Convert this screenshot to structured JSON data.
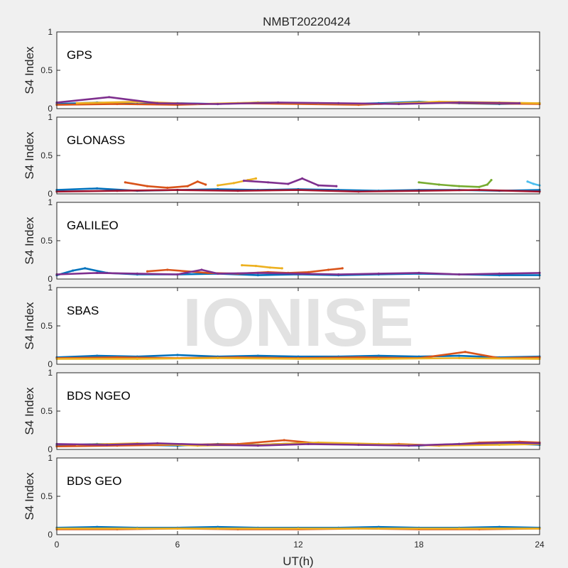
{
  "chart_data": {
    "type": "scatter",
    "title": "NMBT20220424",
    "xlabel": "UT(h)",
    "ylabel": "S4 Index",
    "xlim": [
      0,
      24
    ],
    "ylim": [
      0,
      1
    ],
    "xticks": [
      "0",
      "6",
      "12",
      "18",
      "24"
    ],
    "yticks": [
      "0",
      "0.5",
      "1"
    ],
    "watermark": "IONISE",
    "series_colors": [
      "#0072BD",
      "#D95319",
      "#EDB120",
      "#7E2F8E",
      "#77AC30",
      "#4DBEEE",
      "#A2142F"
    ],
    "panels": [
      {
        "label": "GPS",
        "series": [
          {
            "x": [
              0,
              2,
              4,
              6,
              8,
              10,
              12,
              14,
              16,
              18,
              20,
              22,
              24
            ],
            "y": [
              0.06,
              0.08,
              0.06,
              0.07,
              0.06,
              0.08,
              0.07,
              0.06,
              0.07,
              0.09,
              0.07,
              0.06,
              0.07
            ]
          },
          {
            "x": [
              0,
              3,
              6,
              9,
              12,
              15,
              18,
              21,
              24
            ],
            "y": [
              0.05,
              0.06,
              0.05,
              0.07,
              0.06,
              0.05,
              0.08,
              0.07,
              0.06
            ]
          },
          {
            "x": [
              1,
              4,
              7,
              10,
              13,
              16,
              19,
              22,
              24
            ],
            "y": [
              0.07,
              0.09,
              0.06,
              0.08,
              0.07,
              0.06,
              0.09,
              0.08,
              0.07
            ]
          },
          {
            "x": [
              0,
              2.6,
              5,
              8,
              11,
              14,
              17,
              20,
              23
            ],
            "y": [
              0.08,
              0.15,
              0.07,
              0.06,
              0.08,
              0.07,
              0.06,
              0.08,
              0.07
            ]
          }
        ]
      },
      {
        "label": "GLONASS",
        "series": [
          {
            "x": [
              0,
              2,
              4,
              6,
              8,
              10,
              12,
              14,
              16,
              18,
              20,
              22,
              24
            ],
            "y": [
              0.05,
              0.07,
              0.04,
              0.05,
              0.06,
              0.05,
              0.06,
              0.05,
              0.04,
              0.05,
              0.05,
              0.04,
              0.05
            ]
          },
          {
            "x": [
              3.4,
              4.5,
              5.5,
              6.5,
              7.0,
              7.4
            ],
            "y": [
              0.15,
              0.1,
              0.08,
              0.1,
              0.16,
              0.12
            ]
          },
          {
            "x": [
              8,
              8.8,
              9.5,
              9.9
            ],
            "y": [
              0.11,
              0.14,
              0.18,
              0.2
            ]
          },
          {
            "x": [
              9.3,
              10.5,
              11.5,
              12.2,
              13,
              13.9
            ],
            "y": [
              0.17,
              0.15,
              0.13,
              0.2,
              0.11,
              0.1
            ]
          },
          {
            "x": [
              18,
              19,
              20,
              21,
              21.4,
              21.6
            ],
            "y": [
              0.15,
              0.12,
              0.1,
              0.09,
              0.12,
              0.18
            ]
          },
          {
            "x": [
              23.4,
              23.7,
              24
            ],
            "y": [
              0.16,
              0.13,
              0.11
            ]
          },
          {
            "x": [
              0,
              3,
              6,
              9,
              12,
              15,
              18,
              21,
              24
            ],
            "y": [
              0.03,
              0.04,
              0.05,
              0.04,
              0.05,
              0.03,
              0.04,
              0.05,
              0.03
            ]
          }
        ]
      },
      {
        "label": "GALILEO",
        "series": [
          {
            "x": [
              0,
              0.8,
              1.4,
              2.5,
              4,
              6,
              8,
              10,
              12,
              14,
              16,
              18,
              20,
              22,
              24
            ],
            "y": [
              0.05,
              0.11,
              0.14,
              0.08,
              0.06,
              0.06,
              0.07,
              0.05,
              0.06,
              0.05,
              0.06,
              0.07,
              0.06,
              0.05,
              0.05
            ]
          },
          {
            "x": [
              4.5,
              5.5,
              7.5,
              9,
              10.5,
              11.5,
              12.5,
              13.5,
              14.2
            ],
            "y": [
              0.1,
              0.12,
              0.08,
              0.07,
              0.09,
              0.08,
              0.09,
              0.12,
              0.14
            ]
          },
          {
            "x": [
              9.2,
              9.9,
              10.6,
              11.2
            ],
            "y": [
              0.18,
              0.17,
              0.15,
              0.14
            ]
          },
          {
            "x": [
              0,
              2,
              4,
              6,
              7.2,
              8,
              10,
              12,
              14,
              16,
              18,
              20,
              22,
              24
            ],
            "y": [
              0.06,
              0.08,
              0.07,
              0.06,
              0.12,
              0.07,
              0.08,
              0.07,
              0.06,
              0.07,
              0.08,
              0.06,
              0.07,
              0.08
            ]
          }
        ]
      },
      {
        "label": "SBAS",
        "series": [
          {
            "x": [
              0,
              2,
              4,
              6,
              8,
              10,
              12,
              14,
              16,
              18,
              20,
              22,
              24
            ],
            "y": [
              0.09,
              0.11,
              0.1,
              0.12,
              0.1,
              0.11,
              0.1,
              0.1,
              0.11,
              0.1,
              0.11,
              0.09,
              0.1
            ]
          },
          {
            "x": [
              0,
              3,
              6,
              9,
              12,
              15,
              18,
              20.3,
              22,
              24
            ],
            "y": [
              0.08,
              0.09,
              0.08,
              0.09,
              0.08,
              0.09,
              0.08,
              0.16,
              0.08,
              0.09
            ]
          },
          {
            "x": [
              0,
              4,
              8,
              12,
              16,
              20,
              24
            ],
            "y": [
              0.07,
              0.07,
              0.08,
              0.07,
              0.07,
              0.08,
              0.07
            ]
          }
        ]
      },
      {
        "label": "BDS NGEO",
        "series": [
          {
            "x": [
              0,
              2,
              4,
              6,
              8,
              10,
              12,
              14,
              16,
              18,
              20,
              22,
              24
            ],
            "y": [
              0.05,
              0.07,
              0.06,
              0.05,
              0.07,
              0.06,
              0.08,
              0.07,
              0.06,
              0.05,
              0.07,
              0.08,
              0.06
            ]
          },
          {
            "x": [
              0,
              3,
              6,
              9,
              11.3,
              13,
              15,
              17,
              19,
              21,
              23,
              24
            ],
            "y": [
              0.04,
              0.05,
              0.06,
              0.07,
              0.12,
              0.08,
              0.06,
              0.07,
              0.05,
              0.09,
              0.1,
              0.09
            ]
          },
          {
            "x": [
              1,
              4,
              7,
              10,
              13,
              16,
              19,
              22,
              24
            ],
            "y": [
              0.06,
              0.08,
              0.05,
              0.06,
              0.09,
              0.07,
              0.05,
              0.06,
              0.07
            ]
          },
          {
            "x": [
              0,
              2.5,
              5,
              7.5,
              10,
              12.5,
              15,
              17.5,
              20,
              22.5,
              24
            ],
            "y": [
              0.07,
              0.06,
              0.08,
              0.06,
              0.05,
              0.07,
              0.06,
              0.05,
              0.07,
              0.09,
              0.08
            ]
          }
        ]
      },
      {
        "label": "BDS GEO",
        "series": [
          {
            "x": [
              0,
              2,
              4,
              6,
              8,
              10,
              12,
              14,
              16,
              18,
              20,
              22,
              24
            ],
            "y": [
              0.09,
              0.1,
              0.09,
              0.09,
              0.1,
              0.09,
              0.09,
              0.09,
              0.1,
              0.09,
              0.09,
              0.1,
              0.09
            ]
          },
          {
            "x": [
              0,
              3,
              6,
              9,
              12,
              15,
              18,
              21,
              24
            ],
            "y": [
              0.07,
              0.07,
              0.08,
              0.07,
              0.07,
              0.08,
              0.07,
              0.07,
              0.08
            ]
          },
          {
            "x": [
              0,
              4,
              8,
              12,
              16,
              20,
              24
            ],
            "y": [
              0.08,
              0.08,
              0.08,
              0.08,
              0.08,
              0.08,
              0.08
            ]
          }
        ]
      }
    ]
  }
}
